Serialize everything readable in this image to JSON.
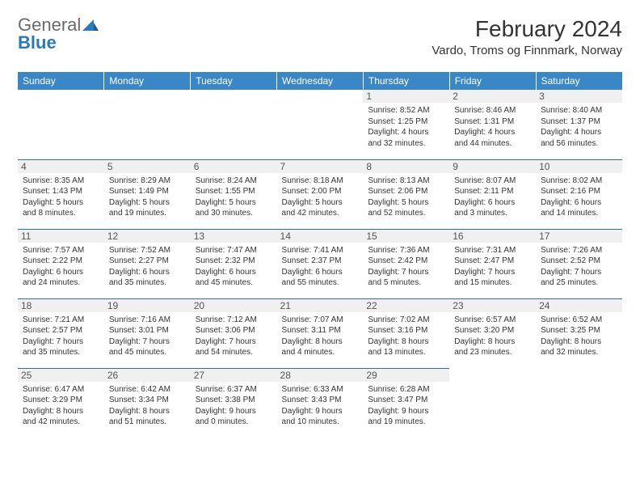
{
  "brand": {
    "general": "General",
    "blue": "Blue"
  },
  "title": "February 2024",
  "location": "Vardo, Troms og Finnmark, Norway",
  "colors": {
    "header_bg": "#3a87c8",
    "header_text": "#ffffff",
    "rule": "#2f6ea1",
    "daynum_bg": "#f0f0f0",
    "body_text": "#333333",
    "logo_grey": "#6a6a6a",
    "logo_blue": "#2a7ab8",
    "page_bg": "#ffffff"
  },
  "day_headers": [
    "Sunday",
    "Monday",
    "Tuesday",
    "Wednesday",
    "Thursday",
    "Friday",
    "Saturday"
  ],
  "weeks": [
    [
      null,
      null,
      null,
      null,
      {
        "n": "1",
        "sr": "Sunrise: 8:52 AM",
        "ss": "Sunset: 1:25 PM",
        "d1": "Daylight: 4 hours",
        "d2": "and 32 minutes."
      },
      {
        "n": "2",
        "sr": "Sunrise: 8:46 AM",
        "ss": "Sunset: 1:31 PM",
        "d1": "Daylight: 4 hours",
        "d2": "and 44 minutes."
      },
      {
        "n": "3",
        "sr": "Sunrise: 8:40 AM",
        "ss": "Sunset: 1:37 PM",
        "d1": "Daylight: 4 hours",
        "d2": "and 56 minutes."
      }
    ],
    [
      {
        "n": "4",
        "sr": "Sunrise: 8:35 AM",
        "ss": "Sunset: 1:43 PM",
        "d1": "Daylight: 5 hours",
        "d2": "and 8 minutes."
      },
      {
        "n": "5",
        "sr": "Sunrise: 8:29 AM",
        "ss": "Sunset: 1:49 PM",
        "d1": "Daylight: 5 hours",
        "d2": "and 19 minutes."
      },
      {
        "n": "6",
        "sr": "Sunrise: 8:24 AM",
        "ss": "Sunset: 1:55 PM",
        "d1": "Daylight: 5 hours",
        "d2": "and 30 minutes."
      },
      {
        "n": "7",
        "sr": "Sunrise: 8:18 AM",
        "ss": "Sunset: 2:00 PM",
        "d1": "Daylight: 5 hours",
        "d2": "and 42 minutes."
      },
      {
        "n": "8",
        "sr": "Sunrise: 8:13 AM",
        "ss": "Sunset: 2:06 PM",
        "d1": "Daylight: 5 hours",
        "d2": "and 52 minutes."
      },
      {
        "n": "9",
        "sr": "Sunrise: 8:07 AM",
        "ss": "Sunset: 2:11 PM",
        "d1": "Daylight: 6 hours",
        "d2": "and 3 minutes."
      },
      {
        "n": "10",
        "sr": "Sunrise: 8:02 AM",
        "ss": "Sunset: 2:16 PM",
        "d1": "Daylight: 6 hours",
        "d2": "and 14 minutes."
      }
    ],
    [
      {
        "n": "11",
        "sr": "Sunrise: 7:57 AM",
        "ss": "Sunset: 2:22 PM",
        "d1": "Daylight: 6 hours",
        "d2": "and 24 minutes."
      },
      {
        "n": "12",
        "sr": "Sunrise: 7:52 AM",
        "ss": "Sunset: 2:27 PM",
        "d1": "Daylight: 6 hours",
        "d2": "and 35 minutes."
      },
      {
        "n": "13",
        "sr": "Sunrise: 7:47 AM",
        "ss": "Sunset: 2:32 PM",
        "d1": "Daylight: 6 hours",
        "d2": "and 45 minutes."
      },
      {
        "n": "14",
        "sr": "Sunrise: 7:41 AM",
        "ss": "Sunset: 2:37 PM",
        "d1": "Daylight: 6 hours",
        "d2": "and 55 minutes."
      },
      {
        "n": "15",
        "sr": "Sunrise: 7:36 AM",
        "ss": "Sunset: 2:42 PM",
        "d1": "Daylight: 7 hours",
        "d2": "and 5 minutes."
      },
      {
        "n": "16",
        "sr": "Sunrise: 7:31 AM",
        "ss": "Sunset: 2:47 PM",
        "d1": "Daylight: 7 hours",
        "d2": "and 15 minutes."
      },
      {
        "n": "17",
        "sr": "Sunrise: 7:26 AM",
        "ss": "Sunset: 2:52 PM",
        "d1": "Daylight: 7 hours",
        "d2": "and 25 minutes."
      }
    ],
    [
      {
        "n": "18",
        "sr": "Sunrise: 7:21 AM",
        "ss": "Sunset: 2:57 PM",
        "d1": "Daylight: 7 hours",
        "d2": "and 35 minutes."
      },
      {
        "n": "19",
        "sr": "Sunrise: 7:16 AM",
        "ss": "Sunset: 3:01 PM",
        "d1": "Daylight: 7 hours",
        "d2": "and 45 minutes."
      },
      {
        "n": "20",
        "sr": "Sunrise: 7:12 AM",
        "ss": "Sunset: 3:06 PM",
        "d1": "Daylight: 7 hours",
        "d2": "and 54 minutes."
      },
      {
        "n": "21",
        "sr": "Sunrise: 7:07 AM",
        "ss": "Sunset: 3:11 PM",
        "d1": "Daylight: 8 hours",
        "d2": "and 4 minutes."
      },
      {
        "n": "22",
        "sr": "Sunrise: 7:02 AM",
        "ss": "Sunset: 3:16 PM",
        "d1": "Daylight: 8 hours",
        "d2": "and 13 minutes."
      },
      {
        "n": "23",
        "sr": "Sunrise: 6:57 AM",
        "ss": "Sunset: 3:20 PM",
        "d1": "Daylight: 8 hours",
        "d2": "and 23 minutes."
      },
      {
        "n": "24",
        "sr": "Sunrise: 6:52 AM",
        "ss": "Sunset: 3:25 PM",
        "d1": "Daylight: 8 hours",
        "d2": "and 32 minutes."
      }
    ],
    [
      {
        "n": "25",
        "sr": "Sunrise: 6:47 AM",
        "ss": "Sunset: 3:29 PM",
        "d1": "Daylight: 8 hours",
        "d2": "and 42 minutes."
      },
      {
        "n": "26",
        "sr": "Sunrise: 6:42 AM",
        "ss": "Sunset: 3:34 PM",
        "d1": "Daylight: 8 hours",
        "d2": "and 51 minutes."
      },
      {
        "n": "27",
        "sr": "Sunrise: 6:37 AM",
        "ss": "Sunset: 3:38 PM",
        "d1": "Daylight: 9 hours",
        "d2": "and 0 minutes."
      },
      {
        "n": "28",
        "sr": "Sunrise: 6:33 AM",
        "ss": "Sunset: 3:43 PM",
        "d1": "Daylight: 9 hours",
        "d2": "and 10 minutes."
      },
      {
        "n": "29",
        "sr": "Sunrise: 6:28 AM",
        "ss": "Sunset: 3:47 PM",
        "d1": "Daylight: 9 hours",
        "d2": "and 19 minutes."
      },
      null,
      null
    ]
  ]
}
